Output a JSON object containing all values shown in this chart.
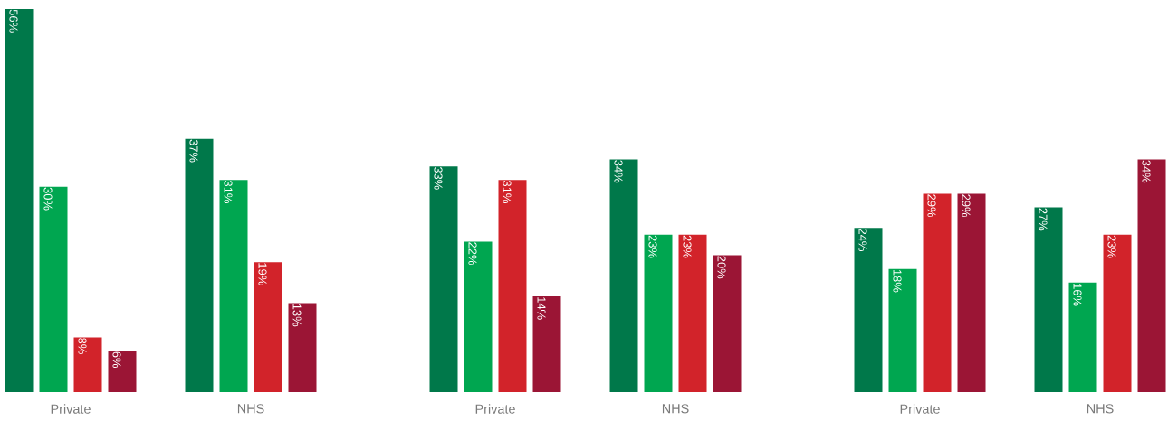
{
  "chart_data": {
    "type": "bar",
    "categories": [
      "Private",
      "NHS",
      "Private",
      "NHS",
      "Private",
      "NHS"
    ],
    "series": [
      {
        "color": "#00784a",
        "values": [
          56,
          37,
          33,
          34,
          24,
          27
        ],
        "value_labels": [
          "56%",
          "37%",
          "33%",
          "34%",
          "24%",
          "27%"
        ]
      },
      {
        "color": "#00a650",
        "values": [
          30,
          31,
          22,
          23,
          18,
          16
        ],
        "value_labels": [
          "30%",
          "31%",
          "22%",
          "23%",
          "18%",
          "16%"
        ]
      },
      {
        "color": "#d2232a",
        "values": [
          8,
          19,
          31,
          23,
          29,
          23
        ],
        "value_labels": [
          "8%",
          "19%",
          "31%",
          "23%",
          "29%",
          "23%"
        ]
      },
      {
        "color": "#9b1535",
        "values": [
          6,
          13,
          14,
          20,
          29,
          34
        ],
        "value_labels": [
          "6%",
          "13%",
          "14%",
          "20%",
          "29%",
          "34%"
        ]
      }
    ]
  }
}
